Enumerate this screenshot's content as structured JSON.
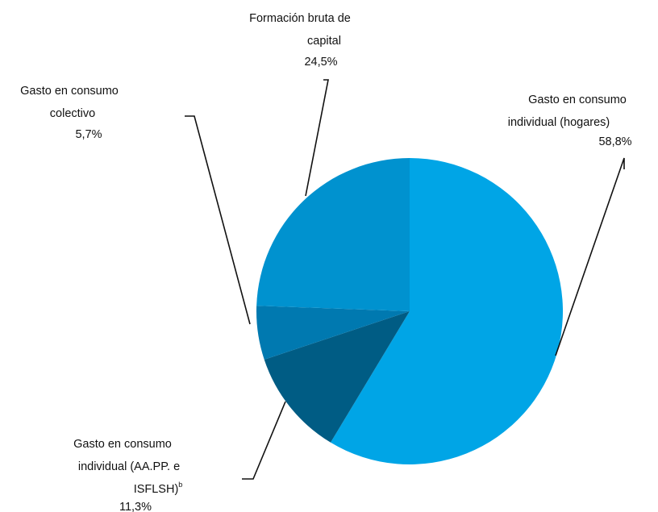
{
  "chart_data": {
    "type": "pie",
    "slices": [
      {
        "label_lines": [
          "Gasto en consumo",
          "individual (hogares)"
        ],
        "sup": "",
        "pct_label": "58,8%",
        "value": 58.8,
        "color": "#00A5E6"
      },
      {
        "label_lines": [
          "Gasto en consumo",
          "individual (AA.PP. e",
          "ISFLSH)"
        ],
        "sup": "b",
        "pct_label": "11,3%",
        "value": 11.3,
        "color": "#005C84"
      },
      {
        "label_lines": [
          "Gasto en consumo",
          "colectivo"
        ],
        "sup": "",
        "pct_label": "5,7%",
        "value": 5.7,
        "color": "#0079B0"
      },
      {
        "label_lines": [
          "Formación bruta de",
          "capital"
        ],
        "sup": "",
        "pct_label": "24,5%",
        "value": 24.5,
        "color": "#0092CF"
      }
    ],
    "start_angle": "12 o'clock",
    "direction": "clockwise"
  }
}
